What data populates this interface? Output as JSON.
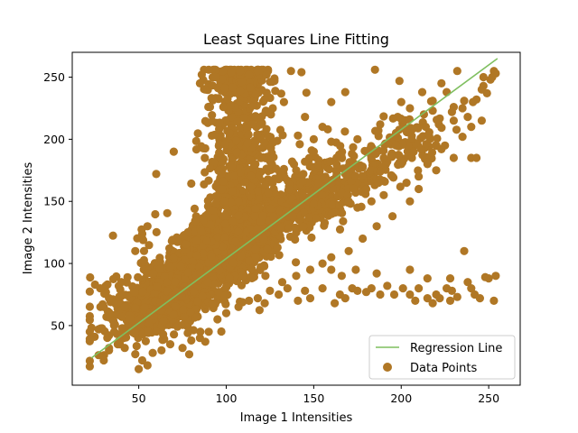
{
  "chart_data": {
    "type": "scatter",
    "title": "Least Squares Line Fitting",
    "xlabel": "Image 1 Intensities",
    "ylabel": "Image 2 Intensities",
    "xlim": [
      12,
      268
    ],
    "ylim": [
      2,
      270
    ],
    "xticks": [
      50,
      100,
      150,
      200,
      250
    ],
    "yticks": [
      50,
      100,
      150,
      200,
      250
    ],
    "grid": false,
    "legend_position": "lower-right",
    "colors": {
      "points": "#b07725",
      "line": "#7fbf5f"
    },
    "series": [
      {
        "name": "Regression Line",
        "kind": "line",
        "x": [
          23,
          255
        ],
        "y": [
          24,
          265
        ]
      },
      {
        "name": "Data Points",
        "kind": "scatter",
        "clusters": [
          {
            "cx": 95,
            "cy": 110,
            "sx": 28,
            "sy": 30,
            "rho": 0.8,
            "n": 1500
          },
          {
            "cx": 65,
            "cy": 62,
            "sx": 13,
            "sy": 10,
            "rho": 0.5,
            "n": 320
          },
          {
            "cx": 108,
            "cy": 175,
            "sx": 10,
            "sy": 38,
            "rho": 0.1,
            "n": 520
          },
          {
            "cx": 110,
            "cy": 245,
            "sx": 10,
            "sy": 8,
            "rho": 0.0,
            "n": 120
          },
          {
            "cx": 160,
            "cy": 158,
            "sx": 20,
            "sy": 18,
            "rho": 0.8,
            "n": 260
          },
          {
            "cx": 200,
            "cy": 195,
            "sx": 13,
            "sy": 12,
            "rho": 0.6,
            "n": 90
          }
        ],
        "points": [
          [
            125,
            78
          ],
          [
            135,
            80
          ],
          [
            145,
            78
          ],
          [
            155,
            80
          ],
          [
            165,
            75
          ],
          [
            172,
            80
          ],
          [
            180,
            77
          ],
          [
            188,
            75
          ],
          [
            192,
            82
          ],
          [
            201,
            80
          ],
          [
            210,
            80
          ],
          [
            215,
            72
          ],
          [
            220,
            75
          ],
          [
            226,
            80
          ],
          [
            232,
            73
          ],
          [
            240,
            80
          ],
          [
            245,
            72
          ],
          [
            250,
            88
          ],
          [
            253,
            70
          ],
          [
            254,
            90
          ],
          [
            236,
            110
          ],
          [
            205,
            95
          ],
          [
            215,
            88
          ],
          [
            222,
            72
          ],
          [
            229,
            78
          ],
          [
            238,
            85
          ],
          [
            248,
            89
          ],
          [
            228,
            88
          ],
          [
            183,
            80
          ],
          [
            196,
            75
          ],
          [
            205,
            75
          ],
          [
            168,
            72
          ],
          [
            175,
            78
          ],
          [
            148,
            72
          ],
          [
            141,
            70
          ],
          [
            162,
            68
          ],
          [
            208,
            70
          ],
          [
            218,
            68
          ],
          [
            228,
            70
          ],
          [
            242,
            75
          ],
          [
            186,
            92
          ],
          [
            174,
            95
          ],
          [
            160,
            95
          ],
          [
            166,
            90
          ],
          [
            243,
            232
          ],
          [
            247,
            243
          ],
          [
            249,
            237
          ],
          [
            251,
            248
          ],
          [
            253,
            255
          ],
          [
            254,
            253
          ],
          [
            236,
            231
          ],
          [
            226,
            238
          ],
          [
            218,
            223
          ],
          [
            240,
            185
          ],
          [
            243,
            185
          ],
          [
            246,
            215
          ],
          [
            230,
            185
          ],
          [
            225,
            195
          ],
          [
            199,
            247
          ],
          [
            185,
            256
          ],
          [
            168,
            238
          ],
          [
            197,
            205
          ],
          [
            188,
            174
          ],
          [
            183,
            150
          ],
          [
            175,
            145
          ],
          [
            170,
            150
          ],
          [
            192,
            182
          ],
          [
            210,
            170
          ],
          [
            215,
            180
          ],
          [
            203,
            165
          ],
          [
            190,
            155
          ],
          [
            180,
            160
          ],
          [
            70,
            190
          ],
          [
            60,
            172
          ],
          [
            55,
            130
          ],
          [
            52,
            120
          ],
          [
            48,
            110
          ],
          [
            40,
            85
          ],
          [
            28,
            80
          ],
          [
            25,
            83
          ],
          [
            33,
            72
          ],
          [
            30,
            65
          ],
          [
            33,
            42
          ],
          [
            36,
            45
          ],
          [
            38,
            35
          ],
          [
            33,
            30
          ],
          [
            30,
            22
          ],
          [
            42,
            32
          ],
          [
            48,
            27
          ],
          [
            52,
            22
          ],
          [
            50,
            15
          ],
          [
            55,
            18
          ],
          [
            58,
            28
          ],
          [
            63,
            30
          ],
          [
            68,
            35
          ],
          [
            75,
            32
          ],
          [
            80,
            38
          ],
          [
            85,
            40
          ],
          [
            90,
            45
          ],
          [
            88,
            37
          ],
          [
            78,
            44
          ],
          [
            95,
            55
          ],
          [
            100,
            60
          ],
          [
            107,
            65
          ],
          [
            113,
            70
          ],
          [
            118,
            72
          ],
          [
            122,
            68
          ],
          [
            130,
            75
          ],
          [
            132,
            85
          ],
          [
            140,
            90
          ],
          [
            148,
            95
          ],
          [
            155,
            100
          ],
          [
            160,
            105
          ],
          [
            170,
            110
          ],
          [
            178,
            120
          ],
          [
            186,
            130
          ],
          [
            195,
            138
          ],
          [
            205,
            150
          ],
          [
            210,
            160
          ],
          [
            220,
            175
          ],
          [
            223,
            192
          ],
          [
            235,
            202
          ],
          [
            240,
            210
          ],
          [
            230,
            226
          ],
          [
            218,
            231
          ],
          [
            213,
            220
          ],
          [
            205,
            225
          ],
          [
            198,
            218
          ],
          [
            188,
            212
          ],
          [
            175,
            200
          ],
          [
            163,
            185
          ],
          [
            158,
            208
          ],
          [
            150,
            190
          ],
          [
            145,
            182
          ],
          [
            140,
            175
          ],
          [
            145,
            218
          ],
          [
            141,
            203
          ],
          [
            133,
            176
          ],
          [
            137,
            255
          ],
          [
            143,
            254
          ],
          [
            133,
            230
          ],
          [
            128,
            239
          ],
          [
            123,
            252
          ],
          [
            118,
            255
          ],
          [
            113,
            252
          ],
          [
            108,
            255
          ],
          [
            103,
            254
          ],
          [
            98,
            255
          ],
          [
            94,
            250
          ],
          [
            90,
            256
          ],
          [
            86,
            252
          ],
          [
            85,
            245
          ],
          [
            88,
            240
          ],
          [
            125,
            222
          ],
          [
            117,
            236
          ],
          [
            138,
            138
          ],
          [
            150,
            148
          ],
          [
            160,
            165
          ],
          [
            168,
            172
          ],
          [
            178,
            178
          ],
          [
            190,
            185
          ],
          [
            197,
            195
          ],
          [
            206,
            200
          ],
          [
            214,
            210
          ],
          [
            221,
            215
          ],
          [
            229,
            222
          ],
          [
            235,
            225
          ],
          [
            241,
            230
          ],
          [
            246,
            240
          ],
          [
            252,
            250
          ],
          [
            247,
            250
          ],
          [
            232,
            255
          ],
          [
            223,
            245
          ],
          [
            212,
            238
          ],
          [
            200,
            230
          ],
          [
            160,
            230
          ],
          [
            155,
            210
          ],
          [
            150,
            200
          ],
          [
            142,
            196
          ],
          [
            160,
            198
          ],
          [
            180,
            190
          ],
          [
            187,
            165
          ],
          [
            195,
            170
          ],
          [
            200,
            180
          ],
          [
            230,
            215
          ],
          [
            238,
            218
          ]
        ]
      }
    ],
    "legend": [
      {
        "label": "Regression Line",
        "kind": "line"
      },
      {
        "label": "Data Points",
        "kind": "scatter"
      }
    ]
  }
}
